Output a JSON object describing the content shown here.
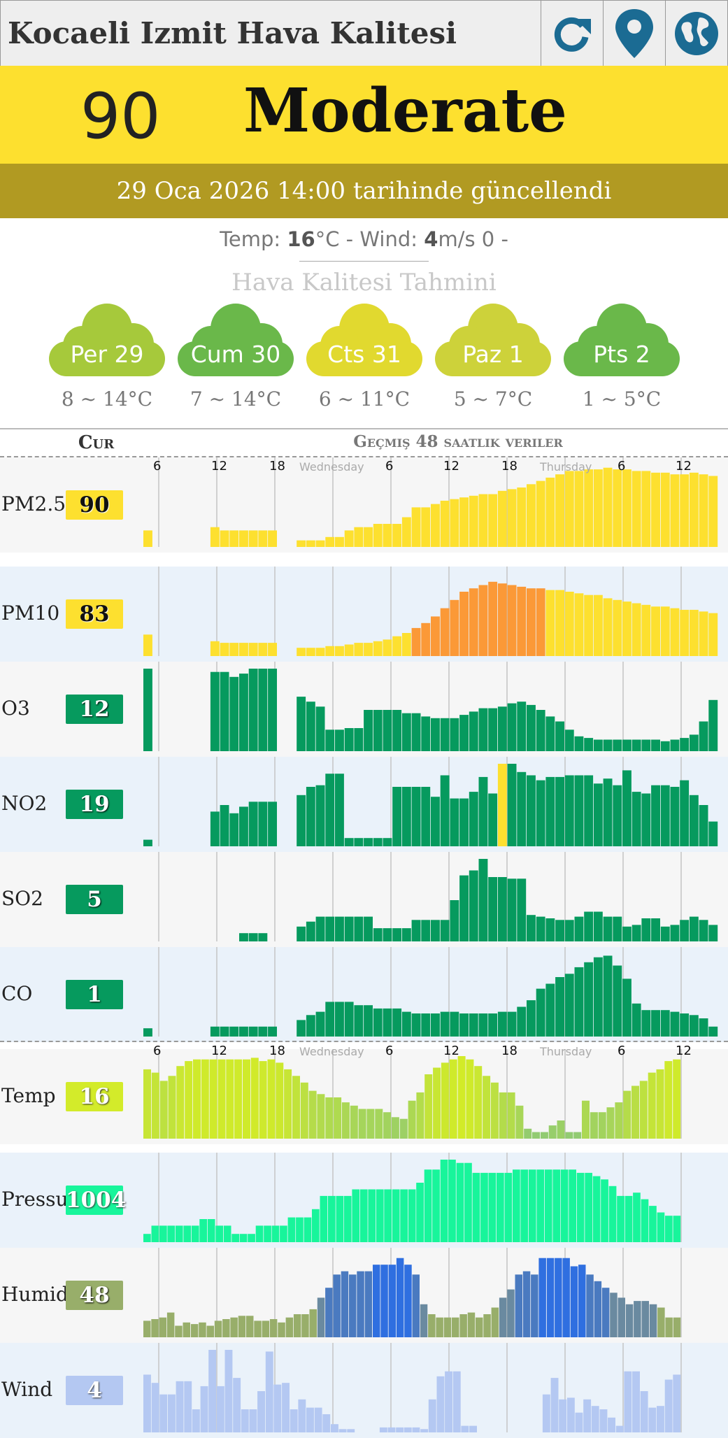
{
  "header": {
    "title": "Kocaeli Izmit Hava Kalitesi"
  },
  "aqi": {
    "value": "90",
    "label": "Moderate",
    "updated": "29 Oca 2026 14:00 tarihinde güncellendi",
    "color": "#fde02f",
    "update_band_color": "#b19a22"
  },
  "weather": {
    "temp_label": "Temp: ",
    "temp_value": "16",
    "temp_unit": "°C - Wind: ",
    "wind_value": "4",
    "wind_unit": "m/s 0 -"
  },
  "forecast": {
    "title": "Hava Kalitesi Tahmini",
    "days": [
      {
        "day": "Per 29",
        "range": "8 ~ 14°C",
        "color": "#a6c93b"
      },
      {
        "day": "Cum 30",
        "range": "7 ~ 14°C",
        "color": "#6ab84a"
      },
      {
        "day": "Cts 31",
        "range": "6 ~ 11°C",
        "color": "#e1d92f"
      },
      {
        "day": "Paz 1",
        "range": "5 ~ 7°C",
        "color": "#cdd23a"
      },
      {
        "day": "Pts 2",
        "range": "1 ~ 5°C",
        "color": "#6ab84a"
      }
    ]
  },
  "table": {
    "cur_header": "Cur",
    "history_header": "Geçmiş 48 saatlik veriler"
  },
  "axis": {
    "ticks": [
      "6",
      "12",
      "18",
      "6",
      "12",
      "18",
      "6",
      "12"
    ],
    "day_labels": [
      "Wednesday",
      "Thursday"
    ]
  },
  "chart_data": [
    {
      "type": "bar",
      "name": "PM2.5",
      "current": "90",
      "badge_color": "#fde02f",
      "ylim": [
        0,
        100
      ],
      "values": [
        20,
        null,
        null,
        null,
        null,
        null,
        null,
        24,
        20,
        20,
        20,
        20,
        20,
        20,
        null,
        null,
        8,
        8,
        8,
        12,
        12,
        20,
        24,
        24,
        28,
        28,
        28,
        36,
        48,
        48,
        52,
        56,
        58,
        60,
        62,
        64,
        64,
        68,
        70,
        72,
        76,
        80,
        84,
        88,
        92,
        92,
        94,
        94,
        96,
        94,
        94,
        92,
        92,
        90,
        90,
        88,
        88,
        90,
        88,
        86
      ],
      "colors": "yellow"
    },
    {
      "type": "bar",
      "name": "PM10",
      "current": "83",
      "badge_color": "#fde02f",
      "ylim": [
        0,
        100
      ],
      "values": [
        26,
        null,
        null,
        null,
        null,
        null,
        null,
        18,
        16,
        16,
        16,
        16,
        16,
        16,
        null,
        null,
        10,
        10,
        10,
        12,
        12,
        14,
        16,
        16,
        18,
        20,
        24,
        28,
        34,
        40,
        48,
        58,
        68,
        78,
        82,
        86,
        90,
        88,
        86,
        84,
        82,
        82,
        80,
        80,
        78,
        76,
        74,
        74,
        70,
        68,
        66,
        64,
        62,
        60,
        60,
        58,
        56,
        56,
        54,
        52
      ],
      "colors": "pm10"
    },
    {
      "type": "bar",
      "name": "O3",
      "current": "12",
      "badge_color": "#069a5e",
      "ylim": [
        0,
        100
      ],
      "values": [
        100,
        null,
        null,
        null,
        null,
        null,
        null,
        96,
        96,
        90,
        94,
        100,
        100,
        100,
        null,
        null,
        66,
        60,
        54,
        26,
        26,
        28,
        28,
        50,
        50,
        50,
        50,
        46,
        46,
        42,
        40,
        40,
        40,
        44,
        48,
        52,
        52,
        54,
        58,
        60,
        56,
        50,
        42,
        36,
        26,
        18,
        16,
        14,
        14,
        14,
        14,
        14,
        14,
        14,
        12,
        14,
        16,
        20,
        36,
        62
      ],
      "colors": "green"
    },
    {
      "type": "bar",
      "name": "NO2",
      "current": "19",
      "badge_color": "#069a5e",
      "ylim": [
        0,
        100
      ],
      "values": [
        8,
        null,
        null,
        null,
        null,
        null,
        null,
        42,
        50,
        40,
        48,
        54,
        54,
        54,
        null,
        null,
        62,
        72,
        74,
        88,
        88,
        10,
        10,
        10,
        10,
        10,
        72,
        72,
        72,
        72,
        60,
        86,
        58,
        58,
        66,
        84,
        64,
        100,
        100,
        90,
        86,
        80,
        84,
        84,
        86,
        86,
        86,
        76,
        82,
        74,
        92,
        66,
        64,
        74,
        74,
        72,
        80,
        62,
        50,
        30
      ],
      "colors": "no2"
    },
    {
      "type": "bar",
      "name": "SO2",
      "current": "5",
      "badge_color": "#069a5e",
      "ylim": [
        0,
        100
      ],
      "values": [
        0,
        null,
        null,
        null,
        null,
        null,
        null,
        0,
        0,
        0,
        10,
        10,
        10,
        0,
        null,
        null,
        18,
        24,
        30,
        30,
        30,
        30,
        30,
        30,
        16,
        16,
        16,
        16,
        26,
        26,
        26,
        26,
        50,
        80,
        86,
        100,
        78,
        78,
        76,
        76,
        32,
        30,
        28,
        26,
        26,
        30,
        36,
        36,
        30,
        30,
        18,
        20,
        28,
        28,
        18,
        20,
        26,
        30,
        26,
        20
      ],
      "colors": "green"
    },
    {
      "type": "bar",
      "name": "CO",
      "current": "1",
      "badge_color": "#069a5e",
      "ylim": [
        0,
        100
      ],
      "values": [
        10,
        null,
        null,
        null,
        null,
        null,
        null,
        12,
        12,
        12,
        12,
        12,
        12,
        12,
        null,
        null,
        20,
        26,
        30,
        42,
        42,
        42,
        38,
        38,
        34,
        34,
        34,
        30,
        28,
        28,
        28,
        30,
        30,
        28,
        28,
        28,
        28,
        30,
        30,
        36,
        44,
        58,
        64,
        72,
        76,
        84,
        90,
        96,
        98,
        86,
        70,
        40,
        32,
        32,
        32,
        30,
        28,
        26,
        22,
        12
      ],
      "colors": "green"
    },
    {
      "type": "bar",
      "name": "Temp",
      "current": "16",
      "badge_color": "#d3eb2a",
      "ylim": [
        0,
        100
      ],
      "values": [
        84,
        80,
        70,
        76,
        88,
        94,
        96,
        96,
        96,
        96,
        96,
        96,
        96,
        98,
        94,
        96,
        92,
        84,
        76,
        68,
        58,
        54,
        50,
        50,
        44,
        40,
        36,
        36,
        36,
        32,
        26,
        24,
        46,
        56,
        78,
        86,
        92,
        96,
        100,
        96,
        88,
        76,
        68,
        56,
        56,
        40,
        12,
        8,
        8,
        16,
        22,
        8,
        8,
        46,
        32,
        32,
        38,
        44,
        58,
        64,
        70,
        80,
        84,
        94,
        96
      ],
      "colors": "temp"
    },
    {
      "type": "bar",
      "name": "Pressure",
      "current": "1004",
      "badge_color": "#18f59b",
      "ylim": [
        0,
        100
      ],
      "values": [
        10,
        20,
        20,
        20,
        20,
        20,
        20,
        28,
        28,
        20,
        20,
        10,
        10,
        10,
        20,
        20,
        20,
        20,
        30,
        30,
        30,
        40,
        56,
        56,
        56,
        56,
        64,
        64,
        64,
        64,
        64,
        64,
        64,
        64,
        72,
        88,
        88,
        100,
        100,
        96,
        96,
        84,
        84,
        84,
        84,
        84,
        88,
        88,
        88,
        88,
        88,
        88,
        88,
        88,
        84,
        84,
        80,
        76,
        68,
        56,
        56,
        60,
        52,
        44,
        36,
        32,
        32
      ],
      "colors": "pressure"
    },
    {
      "type": "bar",
      "name": "Humidity",
      "current": "48",
      "badge_color": "#98ae6a",
      "ylim": [
        0,
        100
      ],
      "values": [
        20,
        22,
        24,
        30,
        14,
        18,
        16,
        18,
        14,
        20,
        22,
        24,
        26,
        26,
        20,
        20,
        22,
        18,
        24,
        28,
        28,
        34,
        48,
        60,
        76,
        80,
        76,
        80,
        80,
        88,
        88,
        88,
        96,
        88,
        76,
        40,
        28,
        24,
        24,
        24,
        28,
        30,
        24,
        28,
        36,
        48,
        58,
        76,
        80,
        76,
        96,
        96,
        96,
        96,
        86,
        88,
        76,
        68,
        60,
        54,
        48,
        40,
        44,
        44,
        40,
        36,
        24,
        24
      ],
      "colors": "humidity"
    },
    {
      "type": "bar",
      "name": "Wind",
      "current": "4",
      "badge_color": "#b4c8f2",
      "ylim": [
        0,
        100
      ],
      "values": [
        70,
        60,
        46,
        46,
        62,
        62,
        28,
        56,
        100,
        56,
        100,
        66,
        28,
        28,
        50,
        98,
        58,
        60,
        28,
        40,
        30,
        30,
        22,
        10,
        4,
        4,
        0,
        0,
        0,
        6,
        6,
        6,
        6,
        6,
        4,
        40,
        68,
        74,
        74,
        8,
        8,
        0,
        0,
        0,
        0,
        0,
        0,
        0,
        0,
        46,
        66,
        40,
        42,
        24,
        40,
        32,
        28,
        18,
        8,
        74,
        74,
        50,
        30,
        32,
        64,
        70
      ]
    }
  ]
}
